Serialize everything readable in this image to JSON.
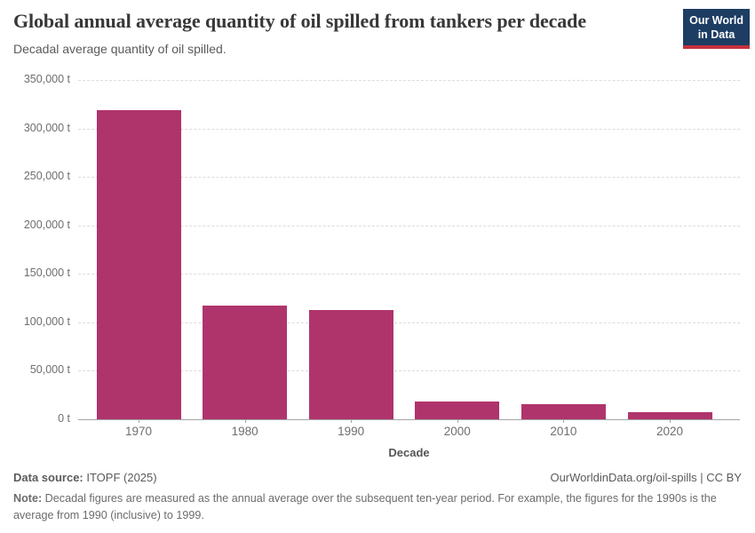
{
  "header": {
    "title": "Global annual average quantity of oil spilled from tankers per decade",
    "subtitle": "Decadal average quantity of oil spilled.",
    "logo": {
      "line1": "Our World",
      "line2": "in Data",
      "bg_color": "#1d3d63",
      "accent_color": "#c5303e"
    }
  },
  "chart_data": {
    "type": "bar",
    "title": "Global annual average quantity of oil spilled from tankers per decade",
    "subtitle": "Decadal average quantity of oil spilled.",
    "categories": [
      "1970",
      "1980",
      "1990",
      "2000",
      "2010",
      "2020"
    ],
    "values": [
      319000,
      117500,
      113000,
      18500,
      15500,
      7000
    ],
    "xlabel": "Decade",
    "ylabel": "",
    "ylim": [
      0,
      350000
    ],
    "ytick_step": 50000,
    "ytick_suffix": " t",
    "grid": "horizontal-dashed",
    "legend": "none",
    "bar_color": "#af346c"
  },
  "footer": {
    "source_label": "Data source:",
    "source_value": " ITOPF (2025)",
    "attribution": "OurWorldinData.org/oil-spills | CC BY",
    "note_label": "Note:",
    "note_text": " Decadal figures are measured as the annual average over the subsequent ten-year period. For example, the figures for the 1990s is the average from 1990 (inclusive) to 1999."
  }
}
